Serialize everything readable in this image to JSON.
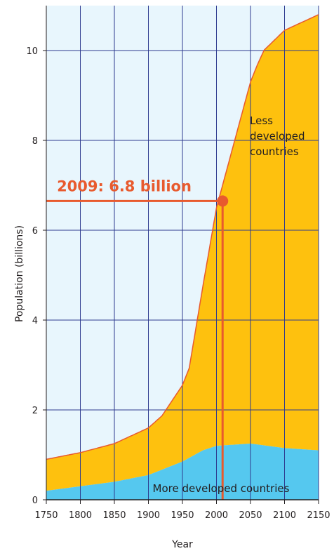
{
  "chart_data": {
    "type": "area",
    "stacked": true,
    "xlabel": "Year",
    "ylabel": "Population (billions)",
    "xlim": [
      1750,
      2150
    ],
    "ylim": [
      0,
      11
    ],
    "x_ticks": [
      1750,
      1800,
      1850,
      1900,
      1950,
      2000,
      2050,
      2100,
      2150
    ],
    "y_ticks": [
      0,
      2,
      4,
      6,
      8,
      10
    ],
    "grid": true,
    "background_color": "#e8f6fd",
    "grid_color": "#2e3b8f",
    "series": [
      {
        "label": "More developed countries",
        "color": "#55c8ef",
        "x": [
          1750,
          1800,
          1850,
          1900,
          1950,
          1980,
          2000,
          2050,
          2100,
          2150
        ],
        "y": [
          0.2,
          0.3,
          0.4,
          0.55,
          0.85,
          1.1,
          1.2,
          1.25,
          1.15,
          1.1
        ]
      },
      {
        "label": "Less developed countries",
        "color": "#fec10e",
        "x": [
          1750,
          1800,
          1850,
          1900,
          1920,
          1950,
          1960,
          2000,
          2050,
          2060,
          2070,
          2100,
          2150
        ],
        "y": [
          0.7,
          0.75,
          0.85,
          1.05,
          1.2,
          1.7,
          2.0,
          5.3,
          8.05,
          8.45,
          8.8,
          9.3,
          9.7
        ]
      }
    ],
    "total_line_color": "#e85a2e",
    "annotation": {
      "text": "2009: 6.8 billion",
      "x": 2009,
      "y": 6.65,
      "color": "#e85a2e"
    }
  }
}
